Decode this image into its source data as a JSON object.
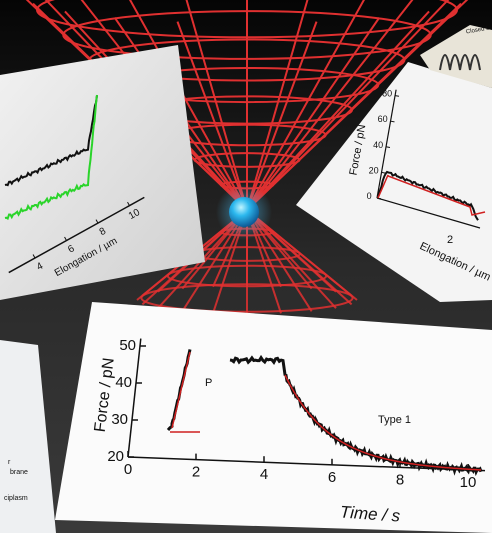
{
  "left_card": {
    "x_label": "Elongation / µm",
    "x_ticks": [
      4,
      6,
      8,
      10
    ]
  },
  "right_card": {
    "y_label": "Force / pN",
    "y_ticks": [
      0,
      20,
      40,
      60,
      80
    ],
    "x_ticks": [
      2
    ],
    "x_label": "Elongation / µm"
  },
  "corner_card": {
    "text": "Closed L"
  },
  "main_card": {
    "y_label": "Force / pN",
    "x_label": "Time / s",
    "y_ticks": [
      20,
      30,
      40,
      50
    ],
    "x_ticks": [
      0,
      2,
      4,
      6,
      8,
      10
    ],
    "annotations": [
      "P",
      "Type 1"
    ]
  },
  "side_card": {
    "texts": [
      "r",
      "brane",
      "ciplasm"
    ]
  }
}
